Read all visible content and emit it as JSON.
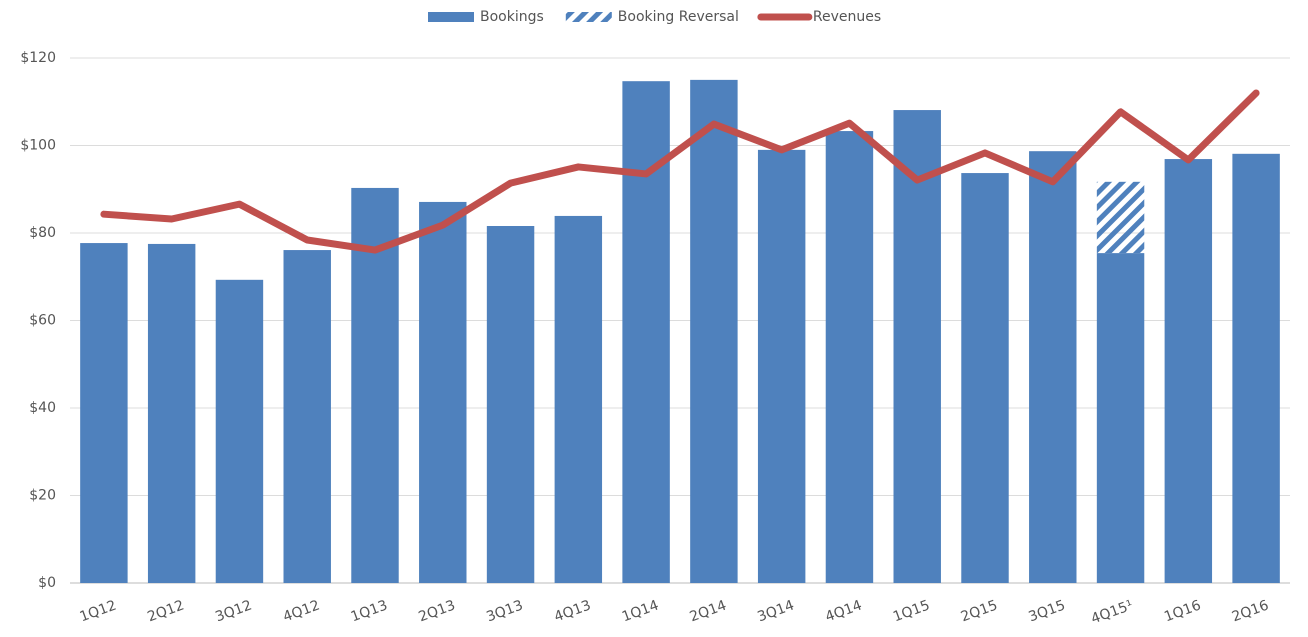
{
  "chart_data": {
    "type": "bar",
    "categories": [
      "1Q12",
      "2Q12",
      "3Q12",
      "4Q12",
      "1Q13",
      "2Q13",
      "3Q13",
      "4Q13",
      "1Q14",
      "2Q14",
      "3Q14",
      "4Q14",
      "1Q15",
      "2Q15",
      "3Q15",
      "4Q15¹",
      "1Q16",
      "2Q16"
    ],
    "series": [
      {
        "name": "Bookings",
        "type": "bar",
        "color": "#4f81bd",
        "values": [
          77.7,
          77.5,
          69.3,
          76.1,
          90.3,
          87.1,
          81.6,
          83.9,
          114.7,
          115.0,
          99.0,
          103.3,
          108.1,
          93.7,
          98.7,
          75.4,
          96.9,
          98.1
        ]
      },
      {
        "name": "Booking Reversal",
        "type": "bar",
        "stacked": true,
        "pattern": "hatch",
        "color": "#4f81bd",
        "values": [
          null,
          null,
          null,
          null,
          null,
          null,
          null,
          null,
          null,
          null,
          null,
          null,
          null,
          null,
          null,
          16.3,
          null,
          null
        ]
      },
      {
        "name": "Revenues",
        "type": "line",
        "color": "#c0504d",
        "values": [
          84.3,
          83.2,
          86.6,
          78.4,
          76.1,
          81.8,
          91.4,
          95.1,
          93.5,
          104.9,
          99.0,
          105.1,
          92.1,
          98.3,
          91.7,
          107.7,
          96.7,
          112.0
        ]
      }
    ],
    "ylim": [
      0,
      120
    ],
    "yticks": [
      {
        "value": 0,
        "label": "$0"
      },
      {
        "value": 20,
        "label": "$20"
      },
      {
        "value": 40,
        "label": "$40"
      },
      {
        "value": 60,
        "label": "$60"
      },
      {
        "value": 80,
        "label": "$80"
      },
      {
        "value": 100,
        "label": "$100"
      },
      {
        "value": 120,
        "label": "$120"
      }
    ],
    "grid": true,
    "legend": "top"
  }
}
